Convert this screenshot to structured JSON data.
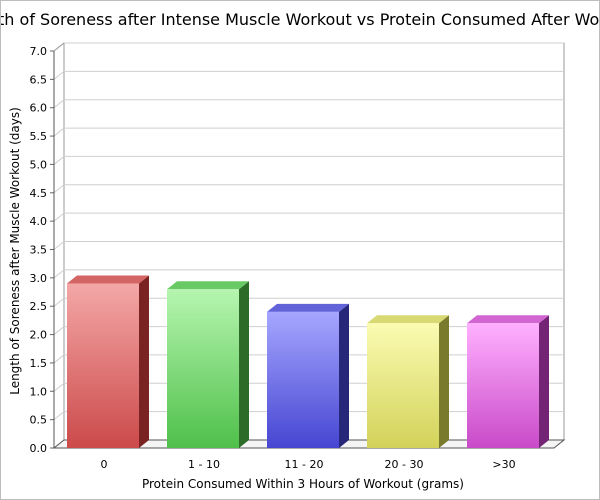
{
  "chart_data": {
    "type": "bar",
    "title": "Length of Soreness after Intense Muscle Workout vs Protein Consumed After Workout",
    "xlabel": "Protein Consumed Within 3 Hours of Workout (grams)",
    "ylabel": "Length of Soreness after Muscle Workout (days)",
    "categories": [
      "0",
      "1 - 10",
      "11 - 20",
      "20 - 30",
      ">30"
    ],
    "values": [
      2.9,
      2.8,
      2.4,
      2.2,
      2.2
    ],
    "ylim": [
      0,
      7
    ],
    "yticks": [
      "0.0",
      "0.5",
      "1.0",
      "1.5",
      "2.0",
      "2.5",
      "3.0",
      "3.5",
      "4.0",
      "4.5",
      "5.0",
      "5.5",
      "6.0",
      "6.5",
      "7.0"
    ],
    "grid": true,
    "legend": "none",
    "colors": [
      {
        "light": "#f4a7a7",
        "dark": "#cc4a4a",
        "side": "#7a2323"
      },
      {
        "light": "#b6f5b0",
        "dark": "#4fc04a",
        "side": "#2c6c28"
      },
      {
        "light": "#a6a6ff",
        "dark": "#4646d2",
        "side": "#27277a"
      },
      {
        "light": "#fbfbb2",
        "dark": "#d2d25a",
        "side": "#7a7a2c"
      },
      {
        "light": "#ffb0ff",
        "dark": "#c94ac9",
        "side": "#742474"
      }
    ]
  }
}
